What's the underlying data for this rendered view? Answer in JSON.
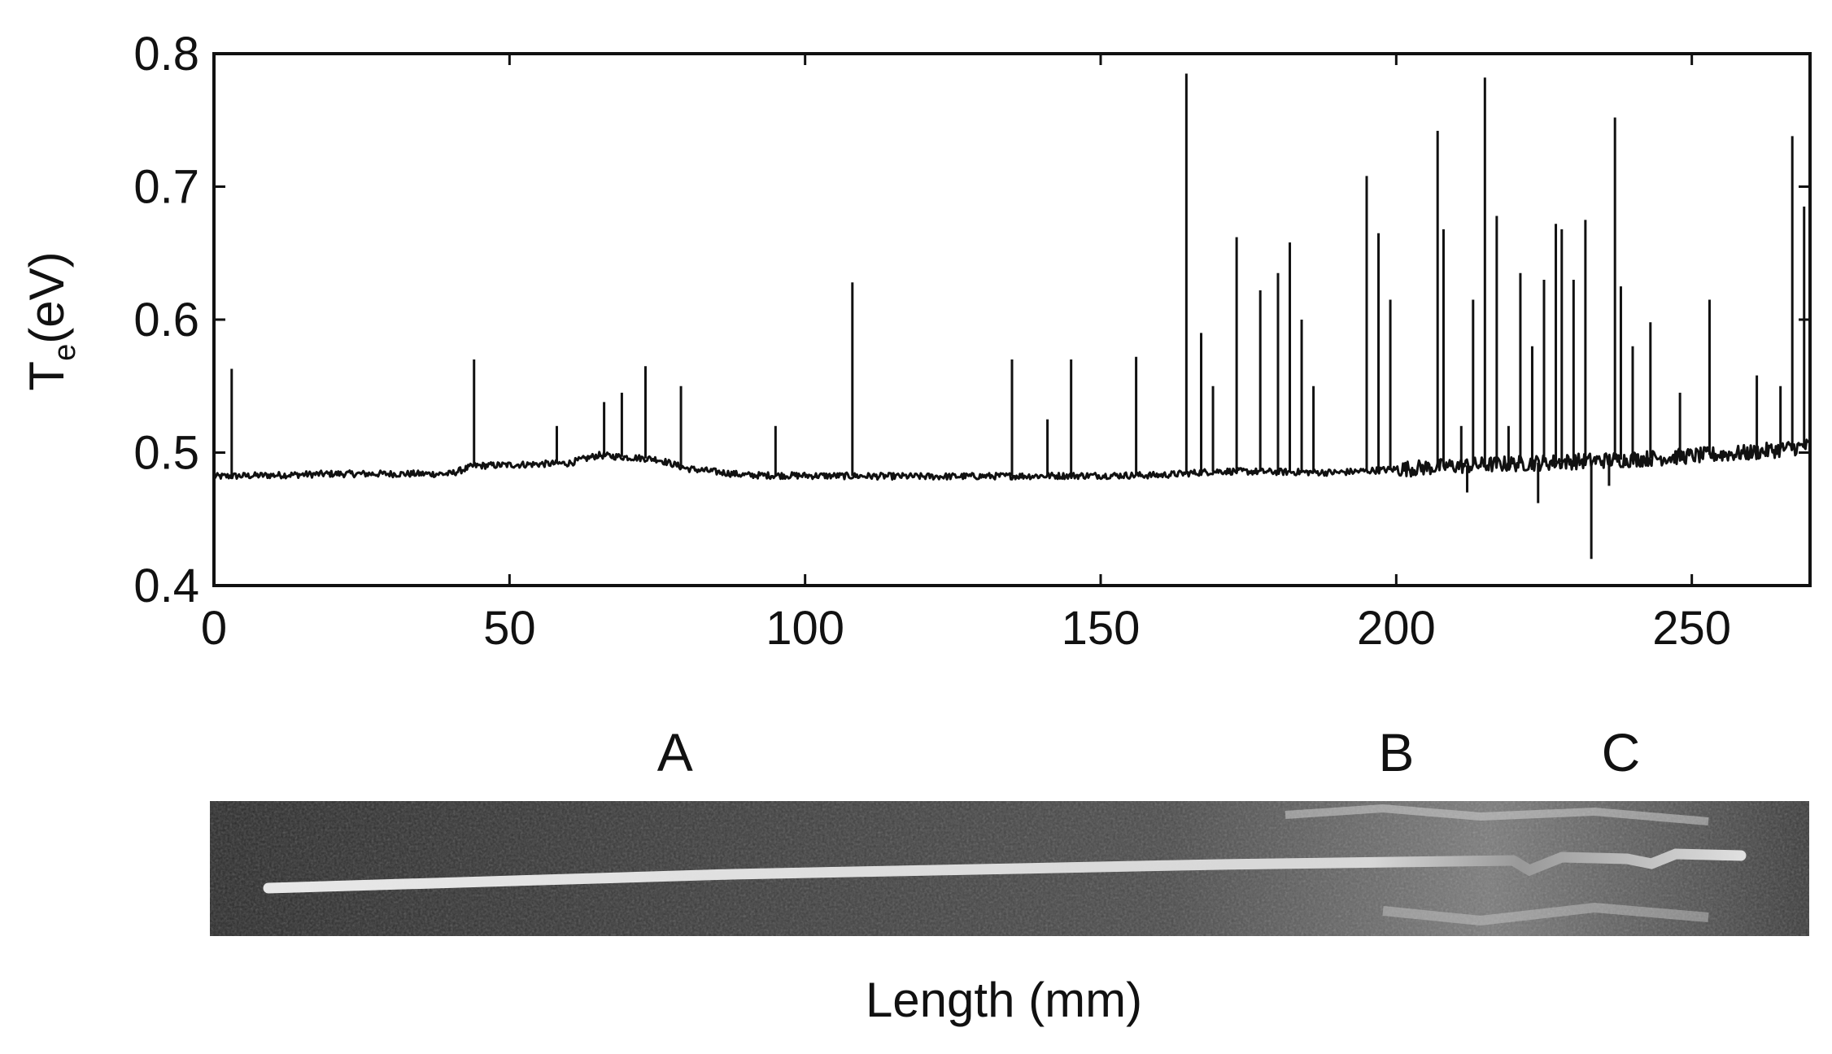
{
  "chart_data": {
    "type": "line",
    "title": "",
    "ylabel_main": "T",
    "ylabel_sub": "e",
    "ylabel_unit": "(eV)",
    "xlabel": "Length (mm)",
    "xlim": [
      0,
      270
    ],
    "ylim": [
      0.4,
      0.8
    ],
    "x_ticks": [
      0,
      50,
      100,
      150,
      200,
      250
    ],
    "x_tick_labels": [
      "0",
      "50",
      "100",
      "150",
      "200",
      "250"
    ],
    "y_ticks": [
      0.4,
      0.5,
      0.6,
      0.7,
      0.8
    ],
    "y_tick_labels": [
      "0.4",
      "0.5",
      "0.6",
      "0.7",
      "0.8"
    ],
    "grid": false,
    "legend": "none",
    "line_color": "#111111",
    "baseline_segments": [
      [
        0,
        0.482
      ],
      [
        20,
        0.484
      ],
      [
        40,
        0.484
      ],
      [
        44,
        0.49
      ],
      [
        60,
        0.492
      ],
      [
        65,
        0.498
      ],
      [
        75,
        0.495
      ],
      [
        80,
        0.488
      ],
      [
        90,
        0.483
      ],
      [
        120,
        0.482
      ],
      [
        160,
        0.483
      ],
      [
        170,
        0.486
      ],
      [
        190,
        0.485
      ],
      [
        210,
        0.49
      ],
      [
        240,
        0.495
      ],
      [
        260,
        0.5
      ],
      [
        270,
        0.505
      ]
    ],
    "peaks": [
      {
        "x": 3,
        "y": 0.563
      },
      {
        "x": 44,
        "y": 0.57
      },
      {
        "x": 58,
        "y": 0.52
      },
      {
        "x": 66,
        "y": 0.538
      },
      {
        "x": 69,
        "y": 0.545
      },
      {
        "x": 73,
        "y": 0.565
      },
      {
        "x": 79,
        "y": 0.55
      },
      {
        "x": 95,
        "y": 0.52
      },
      {
        "x": 108,
        "y": 0.628
      },
      {
        "x": 135,
        "y": 0.57
      },
      {
        "x": 141,
        "y": 0.525
      },
      {
        "x": 145,
        "y": 0.57
      },
      {
        "x": 156,
        "y": 0.572
      },
      {
        "x": 164.5,
        "y": 0.785
      },
      {
        "x": 167,
        "y": 0.59
      },
      {
        "x": 169,
        "y": 0.55
      },
      {
        "x": 173,
        "y": 0.662
      },
      {
        "x": 177,
        "y": 0.622
      },
      {
        "x": 180,
        "y": 0.635
      },
      {
        "x": 182,
        "y": 0.658
      },
      {
        "x": 184,
        "y": 0.6
      },
      {
        "x": 186,
        "y": 0.55
      },
      {
        "x": 195,
        "y": 0.708
      },
      {
        "x": 197,
        "y": 0.665
      },
      {
        "x": 199,
        "y": 0.615
      },
      {
        "x": 207,
        "y": 0.742
      },
      {
        "x": 208,
        "y": 0.668
      },
      {
        "x": 211,
        "y": 0.52
      },
      {
        "x": 213,
        "y": 0.615
      },
      {
        "x": 215,
        "y": 0.782
      },
      {
        "x": 217,
        "y": 0.678
      },
      {
        "x": 219,
        "y": 0.52
      },
      {
        "x": 221,
        "y": 0.635
      },
      {
        "x": 223,
        "y": 0.58
      },
      {
        "x": 225,
        "y": 0.63
      },
      {
        "x": 227,
        "y": 0.672
      },
      {
        "x": 228,
        "y": 0.668
      },
      {
        "x": 230,
        "y": 0.63
      },
      {
        "x": 232,
        "y": 0.675
      },
      {
        "x": 237,
        "y": 0.752
      },
      {
        "x": 238,
        "y": 0.625
      },
      {
        "x": 240,
        "y": 0.58
      },
      {
        "x": 243,
        "y": 0.598
      },
      {
        "x": 248,
        "y": 0.545
      },
      {
        "x": 253,
        "y": 0.615
      },
      {
        "x": 261,
        "y": 0.558
      },
      {
        "x": 265,
        "y": 0.55
      },
      {
        "x": 267,
        "y": 0.738
      },
      {
        "x": 269,
        "y": 0.685
      },
      {
        "x": 270,
        "y": 0.62
      }
    ],
    "dips": [
      {
        "x": 212,
        "y": 0.47
      },
      {
        "x": 224,
        "y": 0.462
      },
      {
        "x": 233,
        "y": 0.42
      },
      {
        "x": 236,
        "y": 0.475
      }
    ],
    "region_labels": [
      {
        "label": "A",
        "x": 78
      },
      {
        "label": "B",
        "x": 200
      },
      {
        "label": "C",
        "x": 238
      }
    ]
  }
}
